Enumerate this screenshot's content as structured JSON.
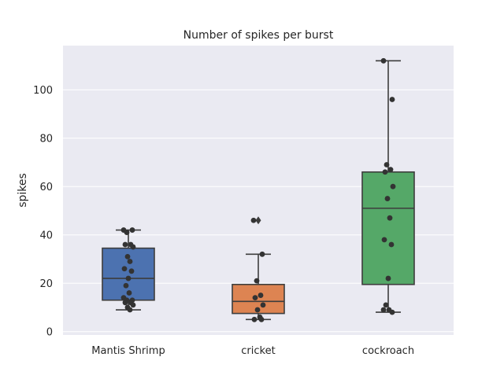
{
  "chart_data": {
    "type": "box",
    "title": "Number of spikes per burst",
    "xlabel": "",
    "ylabel": "spikes",
    "ylim": [
      -1.5,
      118
    ],
    "yticks": [
      0,
      20,
      40,
      60,
      80,
      100
    ],
    "grid": true,
    "legend": "none",
    "categories": [
      "Mantis Shrimp",
      "cricket",
      "cockroach"
    ],
    "colors": [
      "#4c72b0",
      "#dd8452",
      "#55a868"
    ],
    "background": "#eaeaf2",
    "boxes": [
      {
        "category": "Mantis Shrimp",
        "q1": 13,
        "median": 22,
        "q3": 34.5,
        "whisker_low": 9,
        "whisker_high": 42,
        "outliers": [],
        "points": [
          42,
          42,
          41,
          36,
          36,
          35,
          31,
          29,
          26,
          25,
          22,
          19,
          16,
          14,
          13,
          13,
          12,
          12,
          11,
          10,
          9
        ]
      },
      {
        "category": "cricket",
        "q1": 7.5,
        "median": 12.5,
        "q3": 19.5,
        "whisker_low": 5,
        "whisker_high": 32,
        "outliers": [
          46
        ],
        "points": [
          46,
          32,
          21,
          15,
          14,
          11,
          9,
          6,
          5,
          5
        ]
      },
      {
        "category": "cockroach",
        "q1": 19.5,
        "median": 51,
        "q3": 66,
        "whisker_low": 8,
        "whisker_high": 112,
        "outliers": [],
        "points": [
          112,
          96,
          69,
          67,
          66,
          60,
          55,
          47,
          38,
          36,
          22,
          11,
          9,
          9,
          8
        ]
      }
    ]
  }
}
